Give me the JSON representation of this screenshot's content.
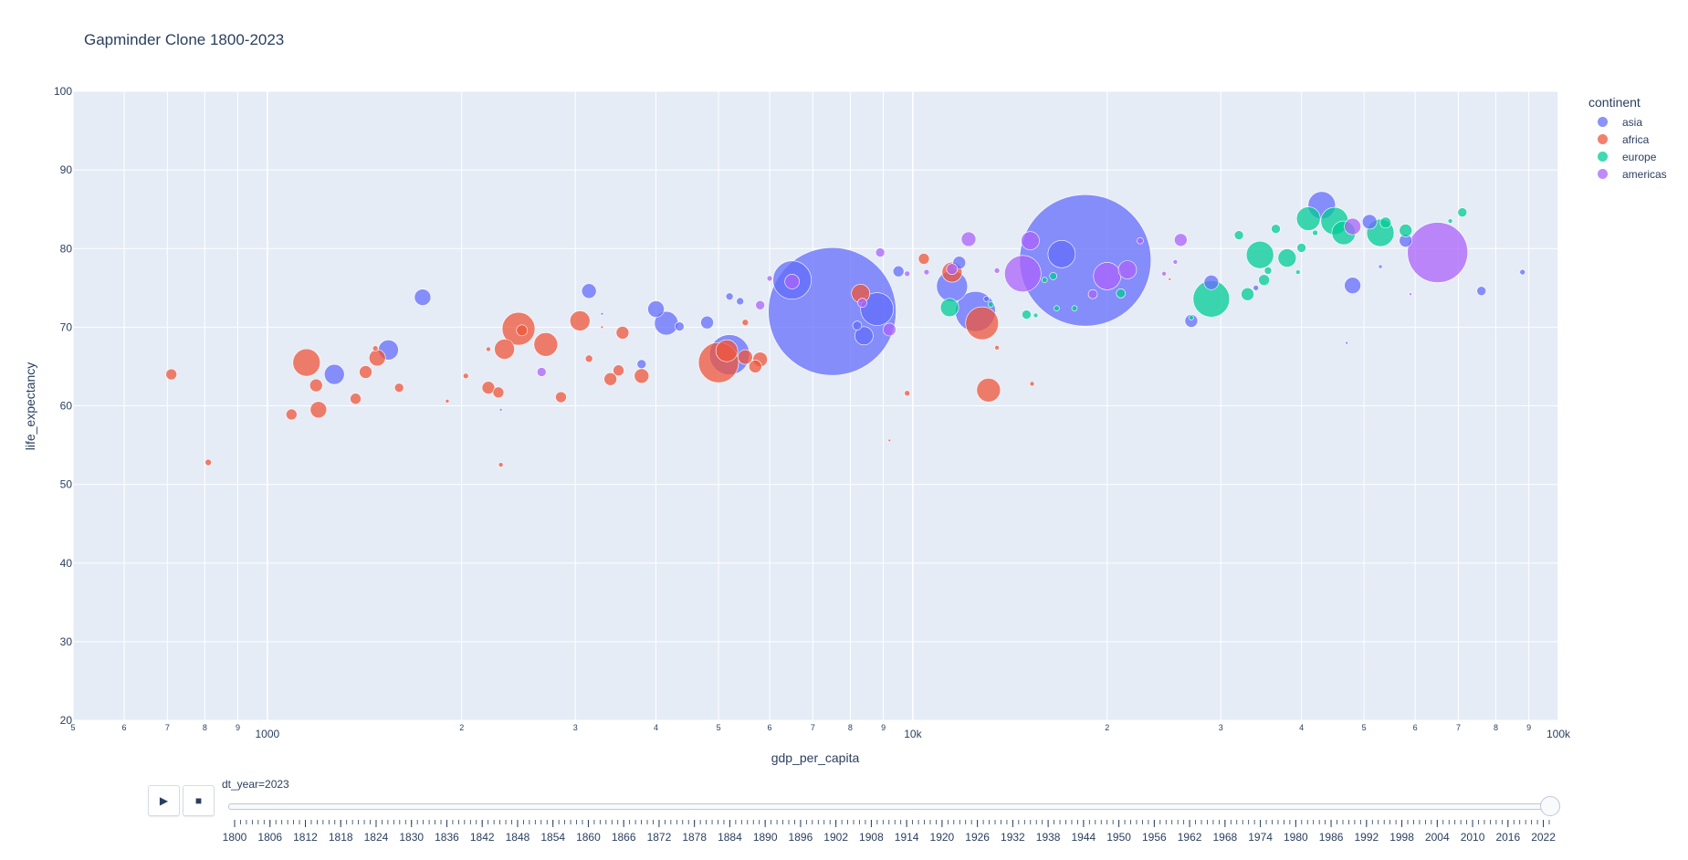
{
  "title": "Gapminder Clone 1800-2023",
  "chart_data": {
    "type": "scatter",
    "xlabel": "gdp_per_capita",
    "ylabel": "life_expectancy",
    "x_scale": "log",
    "xlim": [
      500,
      100000
    ],
    "ylim": [
      20,
      100
    ],
    "x_ticks": [
      {
        "v": 500,
        "l": "5"
      },
      {
        "v": 600,
        "l": "6"
      },
      {
        "v": 700,
        "l": "7"
      },
      {
        "v": 800,
        "l": "8"
      },
      {
        "v": 900,
        "l": "9"
      },
      {
        "v": 1000,
        "l": "1000"
      },
      {
        "v": 2000,
        "l": "2"
      },
      {
        "v": 3000,
        "l": "3"
      },
      {
        "v": 4000,
        "l": "4"
      },
      {
        "v": 5000,
        "l": "5"
      },
      {
        "v": 6000,
        "l": "6"
      },
      {
        "v": 7000,
        "l": "7"
      },
      {
        "v": 8000,
        "l": "8"
      },
      {
        "v": 9000,
        "l": "9"
      },
      {
        "v": 10000,
        "l": "10k"
      },
      {
        "v": 20000,
        "l": "2"
      },
      {
        "v": 30000,
        "l": "3"
      },
      {
        "v": 40000,
        "l": "4"
      },
      {
        "v": 50000,
        "l": "5"
      },
      {
        "v": 60000,
        "l": "6"
      },
      {
        "v": 70000,
        "l": "7"
      },
      {
        "v": 80000,
        "l": "8"
      },
      {
        "v": 90000,
        "l": "9"
      },
      {
        "v": 100000,
        "l": "100k"
      }
    ],
    "y_ticks": [
      20,
      30,
      40,
      50,
      60,
      70,
      80,
      90,
      100
    ],
    "grid": true,
    "legend": {
      "title": "continent",
      "placement": "right"
    },
    "series": [
      {
        "name": "asia",
        "color": "#636efa",
        "points": [
          {
            "x": 7500,
            "y": 72.0,
            "r": 70
          },
          {
            "x": 18500,
            "y": 78.5,
            "r": 72
          },
          {
            "x": 5200,
            "y": 66.5,
            "r": 22
          },
          {
            "x": 6500,
            "y": 76.0,
            "r": 21
          },
          {
            "x": 12500,
            "y": 72.0,
            "r": 22
          },
          {
            "x": 11500,
            "y": 75.2,
            "r": 17
          },
          {
            "x": 8800,
            "y": 72.3,
            "r": 18
          },
          {
            "x": 17000,
            "y": 79.3,
            "r": 15
          },
          {
            "x": 43000,
            "y": 85.5,
            "r": 15
          },
          {
            "x": 1270,
            "y": 64.0,
            "r": 11
          },
          {
            "x": 1540,
            "y": 67.1,
            "r": 11
          },
          {
            "x": 4150,
            "y": 70.5,
            "r": 13
          },
          {
            "x": 1740,
            "y": 73.8,
            "r": 9
          },
          {
            "x": 3150,
            "y": 74.6,
            "r": 8
          },
          {
            "x": 4000,
            "y": 72.3,
            "r": 9
          },
          {
            "x": 4800,
            "y": 70.6,
            "r": 7
          },
          {
            "x": 4350,
            "y": 70.1,
            "r": 5
          },
          {
            "x": 5200,
            "y": 73.9,
            "r": 4
          },
          {
            "x": 5400,
            "y": 73.3,
            "r": 4
          },
          {
            "x": 3800,
            "y": 65.3,
            "r": 5
          },
          {
            "x": 8400,
            "y": 68.9,
            "r": 10
          },
          {
            "x": 8200,
            "y": 70.2,
            "r": 5
          },
          {
            "x": 9500,
            "y": 77.1,
            "r": 6
          },
          {
            "x": 11800,
            "y": 78.2,
            "r": 7
          },
          {
            "x": 48000,
            "y": 75.3,
            "r": 9
          },
          {
            "x": 27000,
            "y": 70.8,
            "r": 7
          },
          {
            "x": 29000,
            "y": 75.7,
            "r": 8
          },
          {
            "x": 51000,
            "y": 83.4,
            "r": 8
          },
          {
            "x": 76000,
            "y": 74.6,
            "r": 5
          },
          {
            "x": 88000,
            "y": 77.0,
            "r": 3
          },
          {
            "x": 58000,
            "y": 81.0,
            "r": 7
          },
          {
            "x": 34000,
            "y": 75.0,
            "r": 3
          },
          {
            "x": 13000,
            "y": 73.6,
            "r": 3
          },
          {
            "x": 2300,
            "y": 59.5,
            "r": 1.5
          },
          {
            "x": 3300,
            "y": 71.7,
            "r": 1.5
          },
          {
            "x": 53000,
            "y": 77.7,
            "r": 2
          },
          {
            "x": 47000,
            "y": 68.0,
            "r": 1.5
          }
        ]
      },
      {
        "name": "africa",
        "color": "#ef553b",
        "points": [
          {
            "x": 5000,
            "y": 65.5,
            "r": 22
          },
          {
            "x": 2450,
            "y": 69.8,
            "r": 18
          },
          {
            "x": 1150,
            "y": 65.5,
            "r": 15
          },
          {
            "x": 12800,
            "y": 70.5,
            "r": 18
          },
          {
            "x": 13100,
            "y": 62.0,
            "r": 13
          },
          {
            "x": 2700,
            "y": 67.8,
            "r": 13
          },
          {
            "x": 2330,
            "y": 67.2,
            "r": 11
          },
          {
            "x": 3050,
            "y": 70.8,
            "r": 11
          },
          {
            "x": 11500,
            "y": 77.0,
            "r": 11
          },
          {
            "x": 8300,
            "y": 74.3,
            "r": 10
          },
          {
            "x": 5150,
            "y": 67.0,
            "r": 12
          },
          {
            "x": 1480,
            "y": 66.1,
            "r": 9
          },
          {
            "x": 1200,
            "y": 59.5,
            "r": 9
          },
          {
            "x": 3800,
            "y": 63.8,
            "r": 8
          },
          {
            "x": 1190,
            "y": 62.6,
            "r": 7
          },
          {
            "x": 1370,
            "y": 60.9,
            "r": 6
          },
          {
            "x": 1420,
            "y": 64.3,
            "r": 7
          },
          {
            "x": 1090,
            "y": 58.9,
            "r": 6
          },
          {
            "x": 710,
            "y": 64.0,
            "r": 6
          },
          {
            "x": 2200,
            "y": 62.3,
            "r": 7
          },
          {
            "x": 2280,
            "y": 61.7,
            "r": 6
          },
          {
            "x": 3400,
            "y": 63.4,
            "r": 7
          },
          {
            "x": 3500,
            "y": 64.5,
            "r": 6
          },
          {
            "x": 3550,
            "y": 69.3,
            "r": 7
          },
          {
            "x": 2850,
            "y": 61.1,
            "r": 6
          },
          {
            "x": 5800,
            "y": 65.9,
            "r": 8
          },
          {
            "x": 5700,
            "y": 65.0,
            "r": 7
          },
          {
            "x": 5500,
            "y": 66.2,
            "r": 8
          },
          {
            "x": 2480,
            "y": 69.6,
            "r": 6
          },
          {
            "x": 1600,
            "y": 62.3,
            "r": 5
          },
          {
            "x": 10400,
            "y": 78.7,
            "r": 6
          },
          {
            "x": 3150,
            "y": 66.0,
            "r": 4
          },
          {
            "x": 5500,
            "y": 70.6,
            "r": 3.5
          },
          {
            "x": 810,
            "y": 52.8,
            "r": 3.5
          },
          {
            "x": 2300,
            "y": 52.5,
            "r": 2.5
          },
          {
            "x": 9800,
            "y": 61.6,
            "r": 3
          },
          {
            "x": 2030,
            "y": 63.8,
            "r": 3
          },
          {
            "x": 1470,
            "y": 67.3,
            "r": 3
          },
          {
            "x": 1900,
            "y": 60.6,
            "r": 2
          },
          {
            "x": 2200,
            "y": 67.2,
            "r": 2.5
          },
          {
            "x": 13500,
            "y": 67.4,
            "r": 2.5
          },
          {
            "x": 15300,
            "y": 62.8,
            "r": 2.5
          },
          {
            "x": 9200,
            "y": 55.6,
            "r": 1.5
          },
          {
            "x": 25000,
            "y": 76.1,
            "r": 1.5
          },
          {
            "x": 3300,
            "y": 70.0,
            "r": 1.5
          }
        ]
      },
      {
        "name": "europe",
        "color": "#00cc96",
        "points": [
          {
            "x": 29000,
            "y": 73.6,
            "r": 20
          },
          {
            "x": 34500,
            "y": 79.2,
            "r": 15
          },
          {
            "x": 45000,
            "y": 83.5,
            "r": 15
          },
          {
            "x": 53000,
            "y": 82.0,
            "r": 15
          },
          {
            "x": 46500,
            "y": 82.0,
            "r": 13
          },
          {
            "x": 41000,
            "y": 83.8,
            "r": 13
          },
          {
            "x": 38000,
            "y": 78.8,
            "r": 10
          },
          {
            "x": 11400,
            "y": 72.5,
            "r": 10
          },
          {
            "x": 32000,
            "y": 81.7,
            "r": 5
          },
          {
            "x": 33000,
            "y": 74.2,
            "r": 7
          },
          {
            "x": 35000,
            "y": 76.0,
            "r": 6
          },
          {
            "x": 36500,
            "y": 82.5,
            "r": 5
          },
          {
            "x": 40000,
            "y": 80.1,
            "r": 5
          },
          {
            "x": 58000,
            "y": 82.3,
            "r": 7
          },
          {
            "x": 54000,
            "y": 83.3,
            "r": 6
          },
          {
            "x": 71000,
            "y": 84.6,
            "r": 5
          },
          {
            "x": 21000,
            "y": 74.3,
            "r": 5
          },
          {
            "x": 15000,
            "y": 71.6,
            "r": 5
          },
          {
            "x": 16500,
            "y": 76.5,
            "r": 4
          },
          {
            "x": 16700,
            "y": 72.4,
            "r": 3
          },
          {
            "x": 17800,
            "y": 72.4,
            "r": 3
          },
          {
            "x": 16000,
            "y": 76.0,
            "r": 3
          },
          {
            "x": 35500,
            "y": 77.2,
            "r": 4
          },
          {
            "x": 42000,
            "y": 82.0,
            "r": 3
          },
          {
            "x": 68000,
            "y": 83.5,
            "r": 2.5
          },
          {
            "x": 13200,
            "y": 72.9,
            "r": 3
          },
          {
            "x": 27000,
            "y": 71.2,
            "r": 2.5
          },
          {
            "x": 39500,
            "y": 77.0,
            "r": 2.5
          },
          {
            "x": 15500,
            "y": 71.5,
            "r": 2.5
          }
        ]
      },
      {
        "name": "americas",
        "color": "#ab63fa",
        "points": [
          {
            "x": 65000,
            "y": 79.5,
            "r": 33
          },
          {
            "x": 14800,
            "y": 76.8,
            "r": 20
          },
          {
            "x": 20000,
            "y": 76.5,
            "r": 15
          },
          {
            "x": 15200,
            "y": 81.0,
            "r": 10
          },
          {
            "x": 12200,
            "y": 81.2,
            "r": 8
          },
          {
            "x": 21500,
            "y": 77.3,
            "r": 10
          },
          {
            "x": 26000,
            "y": 81.1,
            "r": 7
          },
          {
            "x": 6500,
            "y": 75.8,
            "r": 8
          },
          {
            "x": 9200,
            "y": 69.7,
            "r": 7
          },
          {
            "x": 11500,
            "y": 77.4,
            "r": 6
          },
          {
            "x": 2660,
            "y": 64.3,
            "r": 5
          },
          {
            "x": 48000,
            "y": 82.8,
            "r": 9
          },
          {
            "x": 19000,
            "y": 74.2,
            "r": 5
          },
          {
            "x": 8900,
            "y": 79.5,
            "r": 5
          },
          {
            "x": 5800,
            "y": 72.8,
            "r": 5
          },
          {
            "x": 8350,
            "y": 73.1,
            "r": 5
          },
          {
            "x": 22500,
            "y": 81.0,
            "r": 3.5
          },
          {
            "x": 13500,
            "y": 77.2,
            "r": 3
          },
          {
            "x": 6000,
            "y": 76.2,
            "r": 3
          },
          {
            "x": 10500,
            "y": 77.0,
            "r": 3
          },
          {
            "x": 24500,
            "y": 76.8,
            "r": 2.5
          },
          {
            "x": 9800,
            "y": 76.8,
            "r": 3
          },
          {
            "x": 25500,
            "y": 78.3,
            "r": 2.5
          },
          {
            "x": 59000,
            "y": 74.2,
            "r": 1.5
          }
        ]
      }
    ]
  },
  "animation": {
    "current_label": "dt_year=2023",
    "play_icon": "play-icon",
    "stop_icon": "stop-icon",
    "years": [
      1800,
      1806,
      1812,
      1818,
      1824,
      1830,
      1836,
      1842,
      1848,
      1854,
      1860,
      1866,
      1872,
      1878,
      1884,
      1890,
      1896,
      1902,
      1908,
      1914,
      1920,
      1926,
      1932,
      1938,
      1944,
      1950,
      1956,
      1962,
      1968,
      1974,
      1980,
      1986,
      1992,
      1998,
      2004,
      2010,
      2016,
      2022
    ],
    "selected_fraction": 1.0
  }
}
